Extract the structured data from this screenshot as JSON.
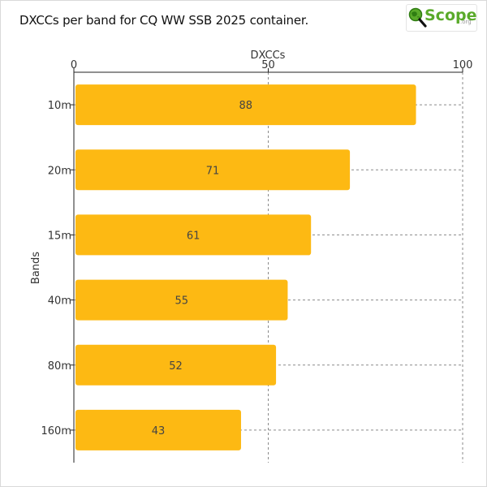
{
  "chart_data": {
    "type": "bar",
    "orientation": "horizontal",
    "title": "DXCCs per band for CQ WW SSB 2025 container.",
    "xlabel": "DXCCs",
    "ylabel": "Bands",
    "xlim": [
      0,
      100
    ],
    "xticks": [
      0,
      50,
      100
    ],
    "categories": [
      "10m",
      "20m",
      "15m",
      "40m",
      "80m",
      "160m"
    ],
    "values": [
      88,
      71,
      61,
      55,
      52,
      43
    ],
    "bar_color": "#fdb913",
    "grid": "dashed vertical",
    "x_axis_position": "top"
  },
  "logo": {
    "text": "Scope",
    "sub": ".org",
    "icon": "magnifier-globe-icon"
  }
}
